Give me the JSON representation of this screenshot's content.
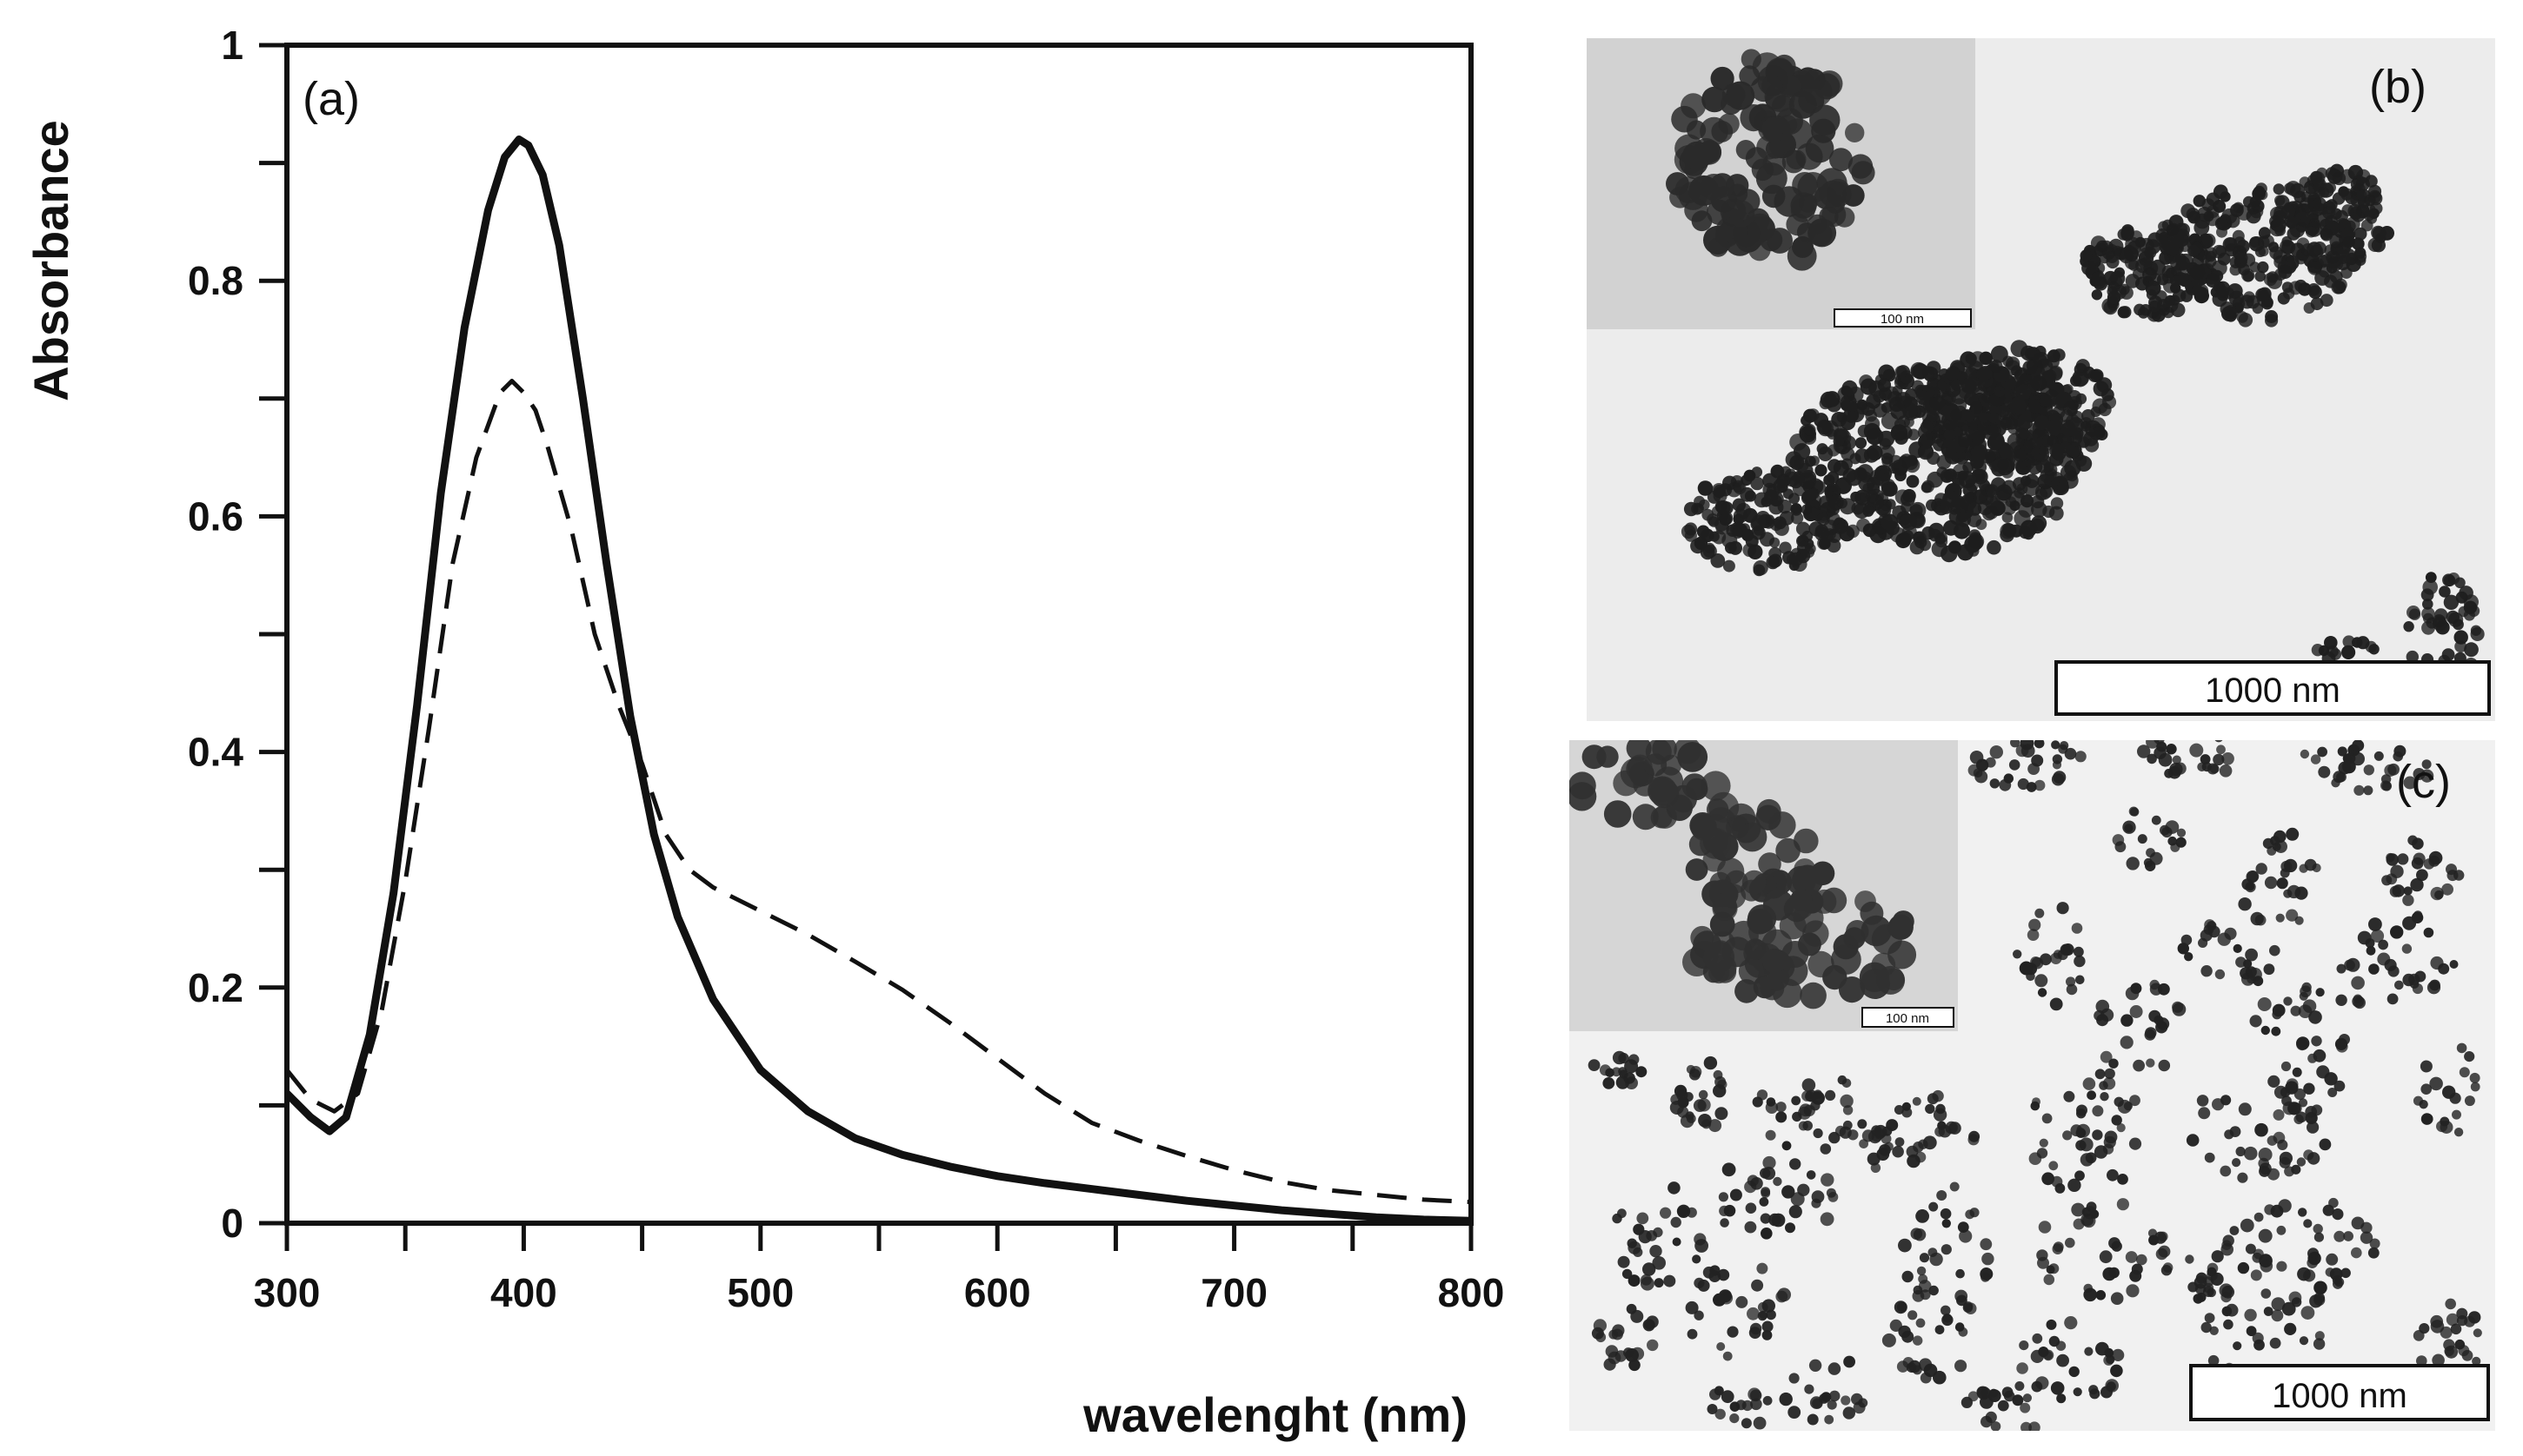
{
  "chart_data": {
    "type": "line",
    "panel_label": "(a)",
    "xlabel": "wavelenght (nm)",
    "ylabel": "Absorbance",
    "xlim": [
      300,
      800
    ],
    "ylim": [
      0,
      1
    ],
    "xticks": [
      300,
      400,
      500,
      600,
      700,
      800
    ],
    "xtick_labels": [
      "300",
      "400",
      "500",
      "600",
      "700",
      "800"
    ],
    "yticks": [
      0,
      0.2,
      0.4,
      0.6,
      0.8,
      1
    ],
    "ytick_labels": [
      "0",
      "0.2",
      "0.4",
      "0.6",
      "0.8",
      "1"
    ],
    "grid": false,
    "series": [
      {
        "style": "solid",
        "color": "#111111",
        "x": [
          300,
          310,
          318,
          325,
          335,
          345,
          355,
          365,
          375,
          385,
          392,
          398,
          402,
          408,
          415,
          425,
          435,
          445,
          455,
          465,
          480,
          500,
          520,
          540,
          560,
          580,
          600,
          620,
          640,
          660,
          680,
          700,
          720,
          740,
          760,
          780,
          800
        ],
        "y": [
          0.11,
          0.09,
          0.078,
          0.09,
          0.16,
          0.28,
          0.44,
          0.62,
          0.76,
          0.86,
          0.905,
          0.92,
          0.915,
          0.89,
          0.83,
          0.7,
          0.56,
          0.43,
          0.33,
          0.26,
          0.19,
          0.13,
          0.095,
          0.072,
          0.058,
          0.048,
          0.04,
          0.034,
          0.029,
          0.024,
          0.019,
          0.015,
          0.011,
          0.008,
          0.005,
          0.003,
          0.002
        ]
      },
      {
        "style": "dashed",
        "color": "#111111",
        "x": [
          300,
          310,
          320,
          330,
          340,
          350,
          360,
          370,
          380,
          390,
          395,
          400,
          405,
          410,
          420,
          430,
          440,
          450,
          460,
          470,
          480,
          500,
          520,
          540,
          560,
          580,
          600,
          620,
          640,
          660,
          680,
          700,
          720,
          740,
          760,
          780,
          800
        ],
        "y": [
          0.13,
          0.105,
          0.095,
          0.11,
          0.18,
          0.29,
          0.42,
          0.56,
          0.65,
          0.705,
          0.715,
          0.705,
          0.69,
          0.66,
          0.59,
          0.5,
          0.44,
          0.39,
          0.33,
          0.3,
          0.285,
          0.265,
          0.245,
          0.222,
          0.198,
          0.17,
          0.14,
          0.11,
          0.085,
          0.07,
          0.057,
          0.045,
          0.035,
          0.028,
          0.024,
          0.02,
          0.018
        ]
      }
    ]
  },
  "micrographs": {
    "b": {
      "label": "(b)",
      "scale_bar": "1000 nm",
      "inset_scale_bar": "100 nm",
      "background": "#ececec",
      "inset_background": "#d2d2d2",
      "particle_color": "#1e1e1e"
    },
    "c": {
      "label": "(c)",
      "scale_bar": "1000 nm",
      "inset_scale_bar": "100 nm",
      "background": "#f1f1f1",
      "inset_background": "#d6d6d6",
      "particle_color": "#222222"
    }
  }
}
